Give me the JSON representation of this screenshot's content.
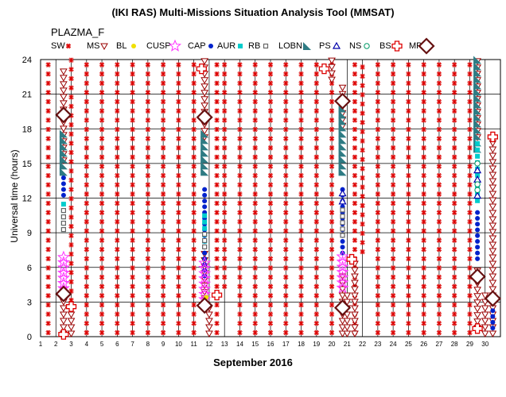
{
  "chart_data": {
    "type": "scatter",
    "title": "(IKI RAS) Multi-Missions Situation Analysis Tool (MMSAT)",
    "panel_label": "PLAZMA_F",
    "xlabel": "September 2016",
    "ylabel": "Universal time (hours)",
    "xlim": [
      1,
      31
    ],
    "ylim": [
      0,
      24
    ],
    "x_ticks": [
      1,
      2,
      3,
      4,
      5,
      6,
      7,
      8,
      9,
      10,
      11,
      12,
      13,
      14,
      15,
      16,
      17,
      18,
      19,
      20,
      21,
      22,
      23,
      24,
      25,
      26,
      27,
      28,
      29,
      30
    ],
    "y_ticks": [
      0,
      3,
      6,
      9,
      12,
      15,
      18,
      21,
      24
    ],
    "grid": true,
    "legend_position": "top",
    "legend": [
      {
        "name": "SW",
        "marker": "sw-star",
        "color": "#dd0000"
      },
      {
        "name": "MS",
        "marker": "triangle-down",
        "color": "#990000"
      },
      {
        "name": "BL",
        "marker": "filled-circle",
        "color": "#f0e000"
      },
      {
        "name": "CUSP",
        "marker": "star-outline",
        "color": "#ff33ff"
      },
      {
        "name": "CAP",
        "marker": "filled-circle",
        "color": "#0022cc"
      },
      {
        "name": "AUR",
        "marker": "filled-square",
        "color": "#00cccc"
      },
      {
        "name": "RB",
        "marker": "square-outline",
        "color": "#666666"
      },
      {
        "name": "LOBN",
        "marker": "triangle-filled",
        "color": "#2e7b83"
      },
      {
        "name": "PS",
        "marker": "triangle-up",
        "color": "#0000aa"
      },
      {
        "name": "NS",
        "marker": "circle-outline",
        "color": "#009966"
      },
      {
        "name": "BS",
        "marker": "cross-outline",
        "color": "#dd0000"
      },
      {
        "name": "MP",
        "marker": "diamond",
        "color": "#661111"
      }
    ],
    "series": [
      {
        "name": "SW",
        "columns": [
          [
            1.5,
            0,
            24
          ],
          [
            3,
            2,
            24
          ],
          [
            4,
            0,
            24
          ],
          [
            5,
            0,
            24
          ],
          [
            6,
            0,
            24
          ],
          [
            7,
            0,
            24
          ],
          [
            8,
            0,
            24
          ],
          [
            9,
            0,
            24
          ],
          [
            10,
            0,
            24
          ],
          [
            11,
            0,
            24
          ],
          [
            12.5,
            0,
            24
          ],
          [
            13,
            4,
            24
          ],
          [
            14,
            0,
            24
          ],
          [
            15,
            0,
            24
          ],
          [
            16,
            0,
            24
          ],
          [
            17,
            0,
            24
          ],
          [
            18,
            0,
            24
          ],
          [
            19,
            0,
            24
          ],
          [
            20,
            0,
            24
          ],
          [
            21.5,
            0,
            24
          ],
          [
            22,
            7,
            24
          ],
          [
            23,
            0,
            24
          ],
          [
            24,
            0,
            24
          ],
          [
            25,
            0,
            24
          ],
          [
            26,
            0,
            24
          ],
          [
            27,
            0,
            24
          ],
          [
            28,
            0,
            24
          ],
          [
            29,
            0,
            24
          ]
        ]
      },
      {
        "name": "MS",
        "ranges": [
          [
            2.5,
            0,
            4.5
          ],
          [
            2.5,
            15,
            23
          ],
          [
            3,
            0,
            2.5
          ],
          [
            11.7,
            2.5,
            7.2
          ],
          [
            11.7,
            17,
            24
          ],
          [
            12,
            0,
            2.5
          ],
          [
            20,
            22,
            24
          ],
          [
            20.7,
            0,
            5.5
          ],
          [
            20.7,
            18,
            22
          ],
          [
            21,
            0,
            4
          ],
          [
            21.5,
            0,
            6.5
          ],
          [
            29.5,
            0.5,
            6
          ],
          [
            29.5,
            17,
            24
          ],
          [
            30,
            0,
            4
          ],
          [
            30.5,
            0,
            17
          ]
        ]
      },
      {
        "name": "BL",
        "points": [
          [
            11.8,
            3.4
          ]
        ]
      },
      {
        "name": "CUSP",
        "ranges": [
          [
            2.5,
            3.5,
            7.2
          ],
          [
            11.7,
            3,
            6.5
          ],
          [
            20.7,
            4,
            7
          ]
        ]
      },
      {
        "name": "CAP",
        "ranges": [
          [
            2.5,
            12,
            14
          ],
          [
            11.7,
            5,
            13
          ],
          [
            20.7,
            7,
            13
          ],
          [
            29.5,
            6.5,
            11
          ],
          [
            30.5,
            0.5,
            2.5
          ]
        ]
      },
      {
        "name": "AUR",
        "ranges": [
          [
            2.5,
            9,
            12
          ],
          [
            11.7,
            8,
            11
          ],
          [
            29.5,
            11.5,
            17
          ]
        ]
      },
      {
        "name": "RB",
        "ranges": [
          [
            2.5,
            9,
            11
          ],
          [
            11.7,
            7.5,
            9
          ],
          [
            20.7,
            8.5,
            11
          ]
        ]
      },
      {
        "name": "LOBN",
        "ranges": [
          [
            2.5,
            14,
            18
          ],
          [
            11.7,
            14,
            18
          ],
          [
            20.7,
            14,
            20
          ],
          [
            29.5,
            16,
            24
          ]
        ]
      },
      {
        "name": "PS",
        "points": [
          [
            20.7,
            11.7
          ],
          [
            20.7,
            12.4
          ],
          [
            29.5,
            12.2
          ],
          [
            29.5,
            13.6
          ],
          [
            29.5,
            14.4
          ]
        ]
      },
      {
        "name": "NS",
        "points": [
          [
            29.5,
            12.7
          ],
          [
            29.5,
            13.2
          ],
          [
            29.5,
            15
          ]
        ]
      },
      {
        "name": "BS",
        "points": [
          [
            2.5,
            0.2
          ],
          [
            3,
            2.6
          ],
          [
            11.5,
            23.2
          ],
          [
            12.5,
            3.6
          ],
          [
            19.5,
            23.2
          ],
          [
            21.3,
            6.7
          ],
          [
            29.5,
            0.7
          ],
          [
            30.5,
            17.3
          ]
        ]
      },
      {
        "name": "MP",
        "points": [
          [
            2.5,
            3.7
          ],
          [
            2.5,
            19.2
          ],
          [
            11.7,
            2.7
          ],
          [
            11.7,
            19
          ],
          [
            20.7,
            2.5
          ],
          [
            20.7,
            20.4
          ],
          [
            29.5,
            5.2
          ],
          [
            30.5,
            3.3
          ]
        ]
      }
    ]
  }
}
